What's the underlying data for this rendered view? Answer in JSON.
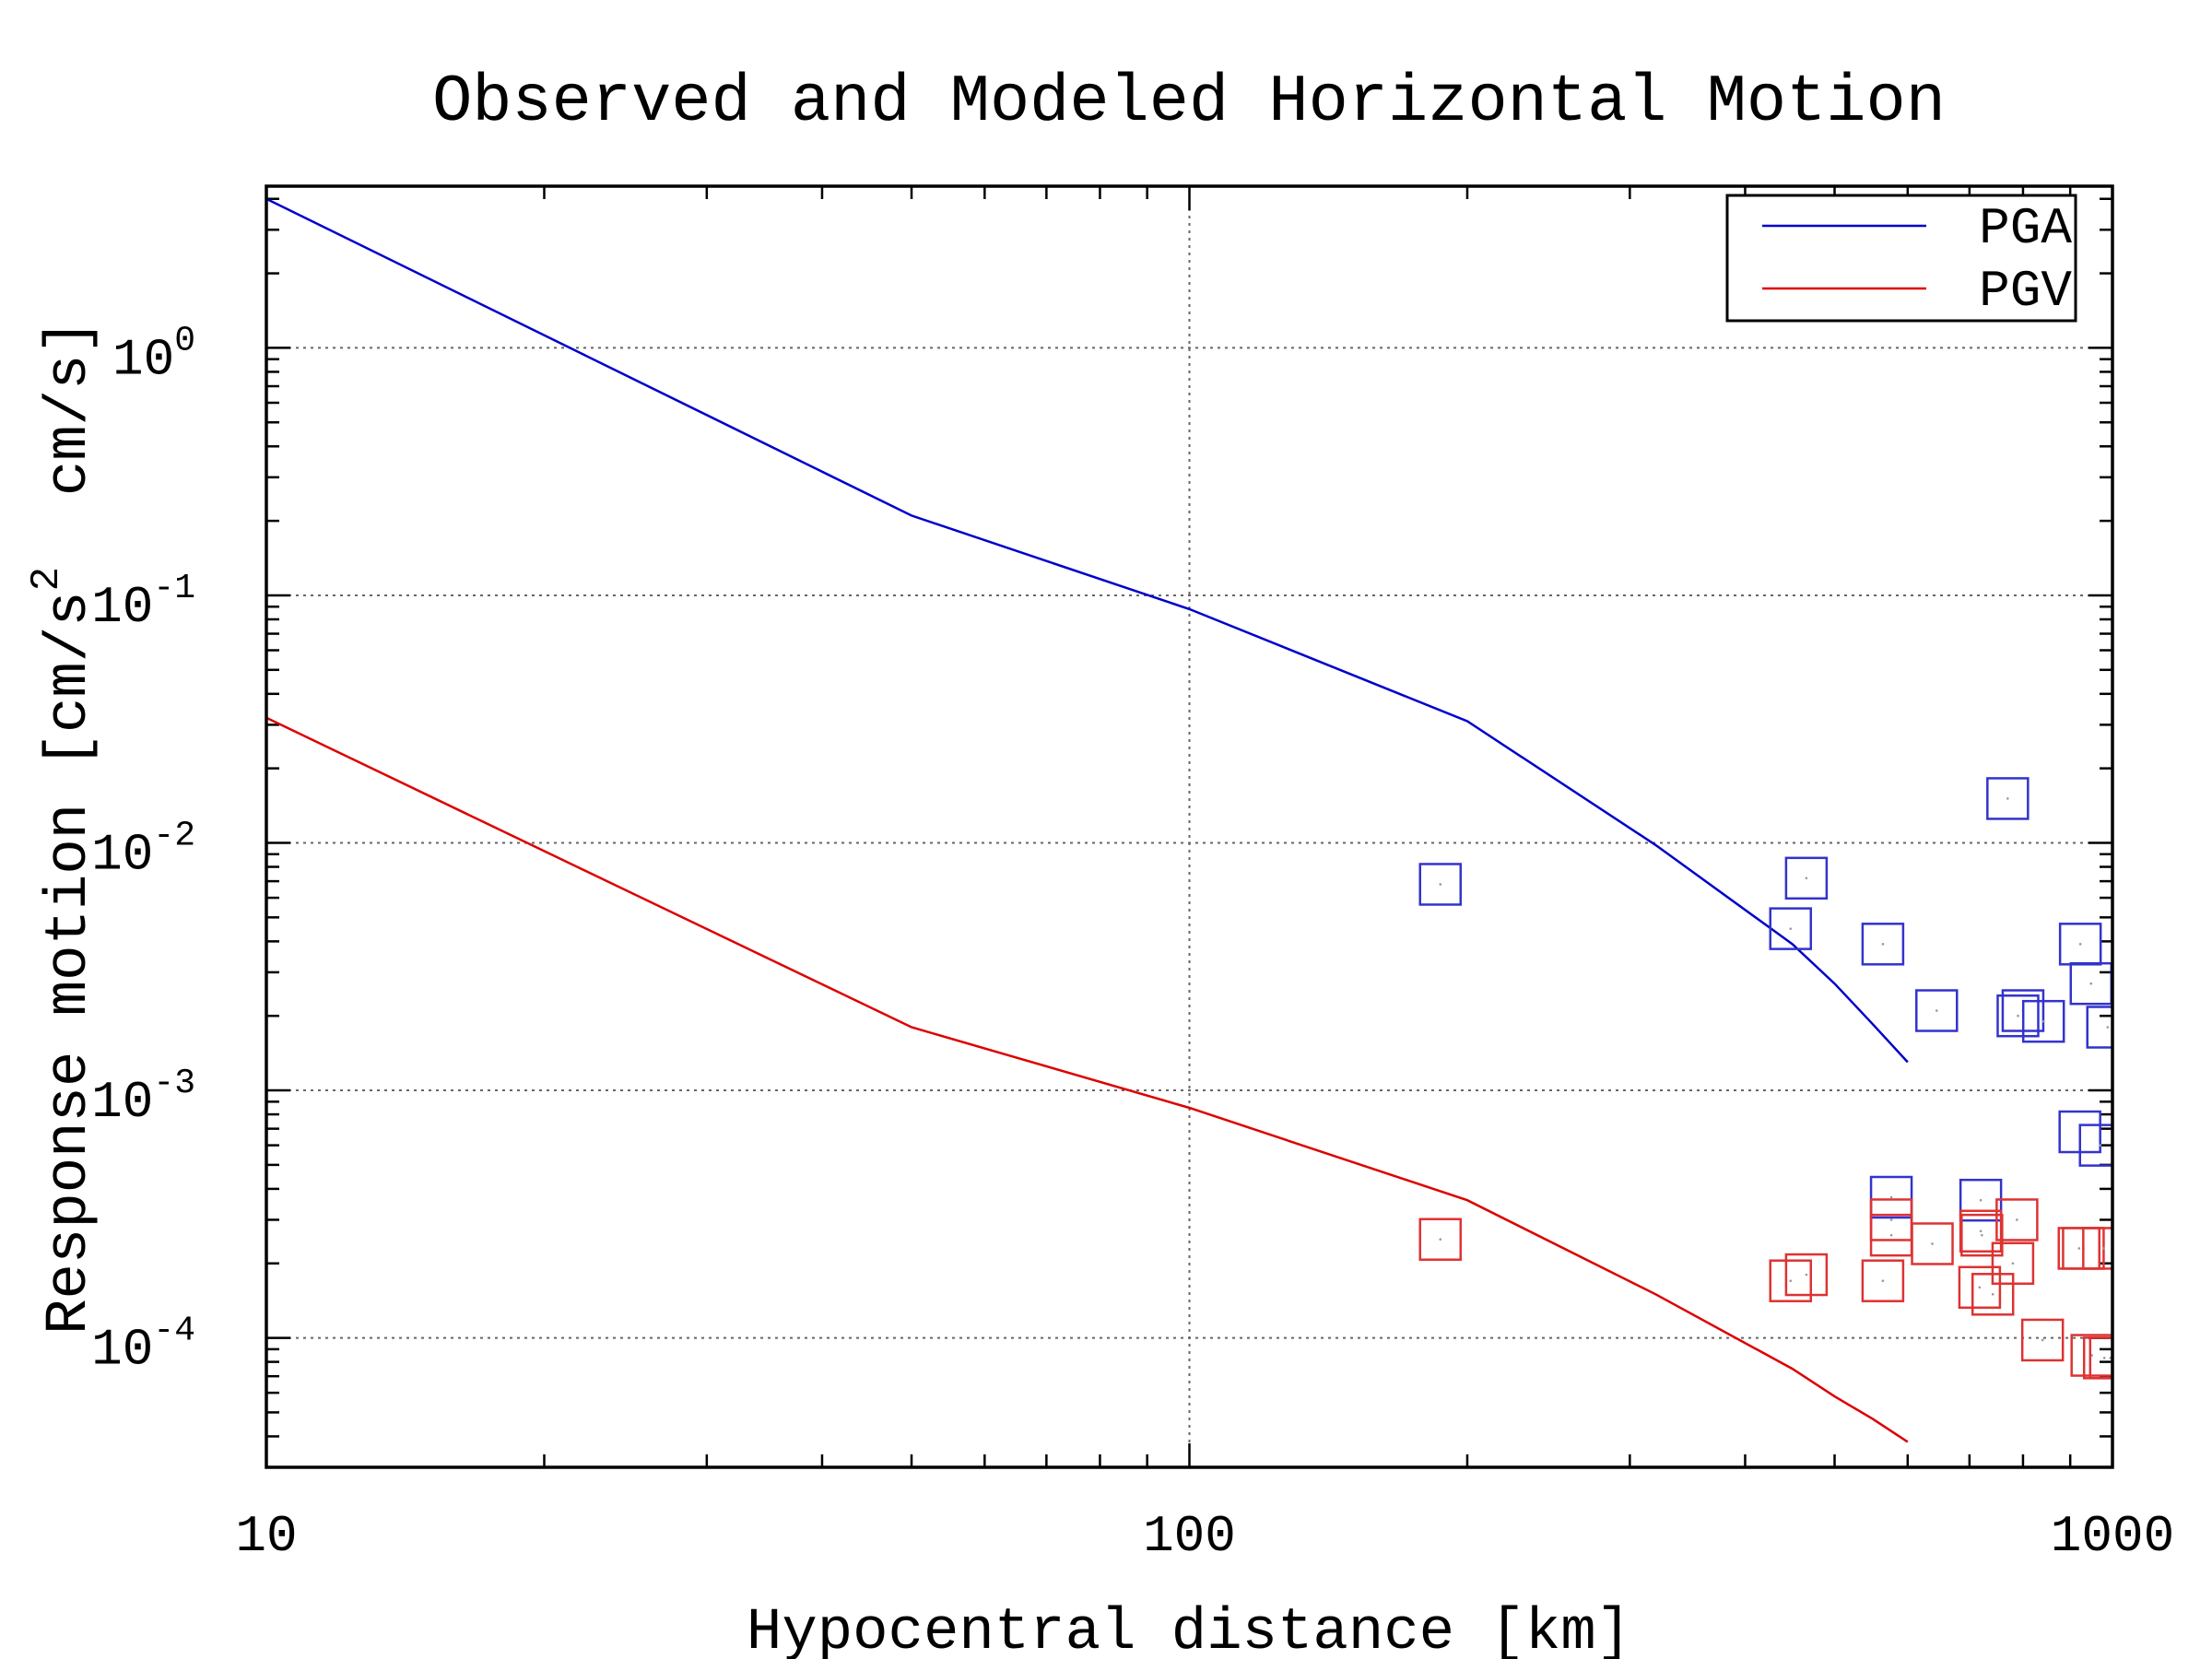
{
  "chart_data": {
    "type": "line",
    "title": "Observed and Modeled Horizontal Motion",
    "xlabel": "Hypocentral distance [km]",
    "ylabel": {
      "prefix": "Response motion [cm/s",
      "superscript": "2",
      "suffix": "  cm/s]"
    },
    "x_scale": "log",
    "y_scale": "log",
    "xlim": [
      10,
      1000
    ],
    "ylim": [
      3e-05,
      4.5
    ],
    "x_ticks": [
      {
        "value": 10,
        "label": "10"
      },
      {
        "value": 100,
        "label": "100"
      },
      {
        "value": 1000,
        "label": "1000"
      }
    ],
    "y_ticks": [
      {
        "value": 1,
        "base": "10",
        "exp": "0"
      },
      {
        "value": 0.1,
        "base": "10",
        "exp": "-1"
      },
      {
        "value": 0.01,
        "base": "10",
        "exp": "-2"
      },
      {
        "value": 0.001,
        "base": "10",
        "exp": "-3"
      },
      {
        "value": 0.0001,
        "base": "10",
        "exp": "-4"
      }
    ],
    "grid": true,
    "legend_position": "top-right",
    "series": [
      {
        "name": "PGA",
        "color": "#0000cc",
        "x": [
          10,
          50,
          100,
          200,
          320,
          450,
          500,
          550,
          600
        ],
        "y": [
          4.0,
          0.21,
          0.088,
          0.031,
          0.0098,
          0.0039,
          0.0027,
          0.00185,
          0.0013
        ]
      },
      {
        "name": "PGV",
        "color": "#dd0000",
        "x": [
          10,
          50,
          100,
          200,
          320,
          450,
          500,
          550,
          600
        ],
        "y": [
          0.032,
          0.0018,
          0.00085,
          0.00036,
          0.00015,
          7.5e-05,
          5.8e-05,
          4.7e-05,
          3.8e-05
        ]
      }
    ],
    "observations": [
      {
        "series": "PGA",
        "color": "#3333cc",
        "points": [
          [
            187,
            0.0068
          ],
          [
            448,
            0.0045
          ],
          [
            466,
            0.0072
          ],
          [
            564,
            0.0039
          ],
          [
            645,
            0.0021
          ],
          [
            770,
            0.0151
          ],
          [
            790,
            0.002
          ],
          [
            800,
            0.0021
          ],
          [
            842,
            0.0019
          ],
          [
            923,
            0.0039
          ],
          [
            948,
            0.0027
          ],
          [
            988,
            0.0018
          ],
          [
            922,
            0.00068
          ],
          [
            970,
            0.0006
          ],
          [
            576,
            0.00037
          ],
          [
            720,
            0.00036
          ]
        ]
      },
      {
        "series": "PGV",
        "color": "#dd3333",
        "points": [
          [
            187,
            0.00025
          ],
          [
            448,
            0.00017
          ],
          [
            466,
            0.00018
          ],
          [
            564,
            0.00017
          ],
          [
            576,
            0.0003
          ],
          [
            576,
            0.00026
          ],
          [
            638,
            0.00024
          ],
          [
            718,
            0.00016
          ],
          [
            720,
            0.00027
          ],
          [
            722,
            0.00026
          ],
          [
            742,
            0.00015
          ],
          [
            788,
            0.0003
          ],
          [
            780,
            0.0002
          ],
          [
            840,
            9.8e-05
          ],
          [
            920,
            0.00023
          ],
          [
            930,
            0.00023
          ],
          [
            950,
            8.5e-05
          ],
          [
            980,
            8.3e-05
          ],
          [
            978,
            0.00023
          ],
          [
            995,
            8.3e-05
          ]
        ]
      }
    ]
  }
}
